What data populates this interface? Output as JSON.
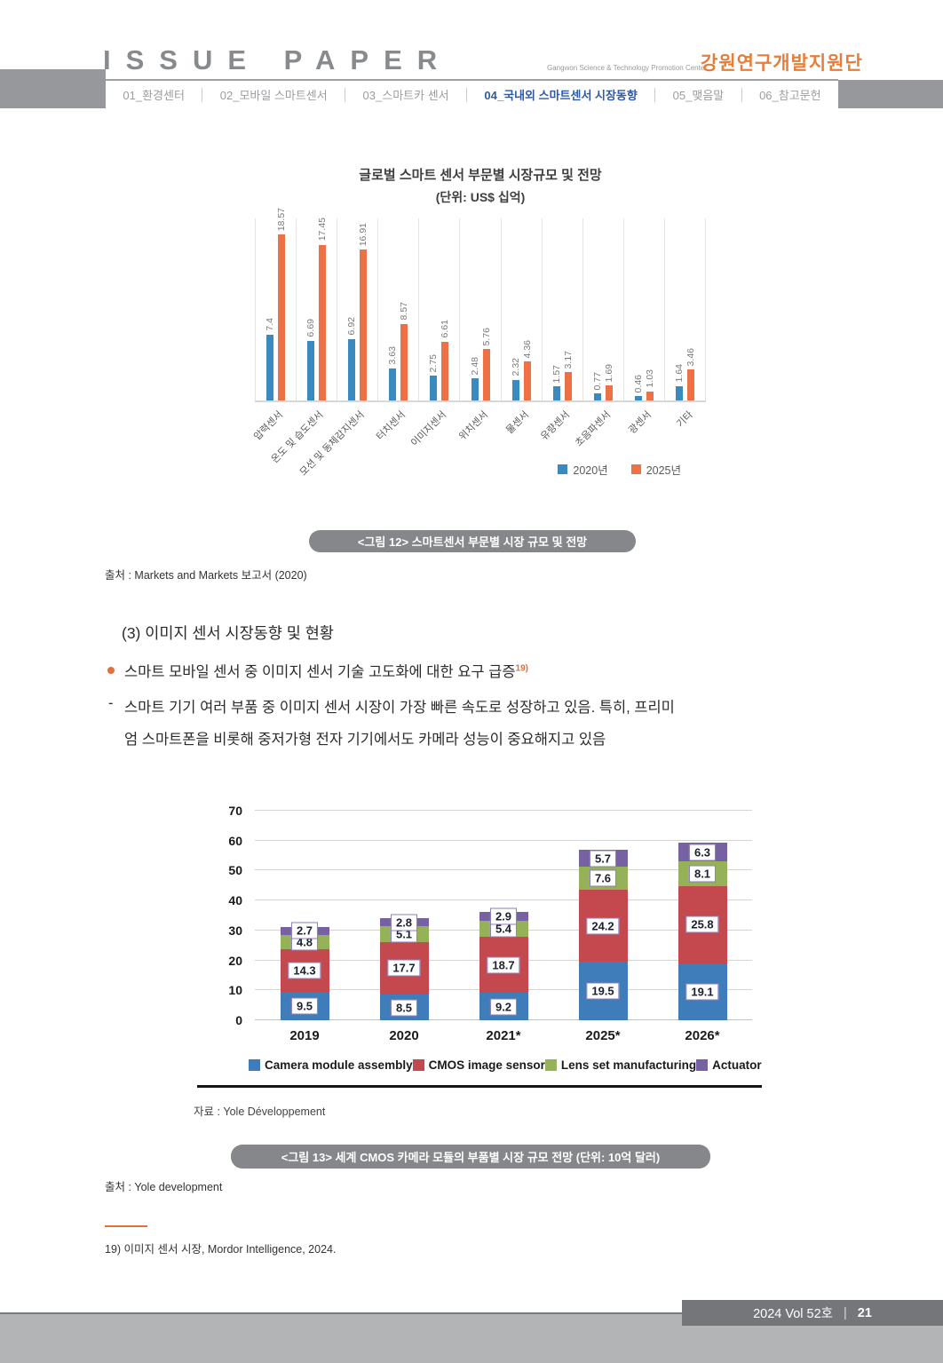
{
  "header": {
    "logo_title": "ISSUE PAPER",
    "center_en": "Gangwon Science & Technology Promotion Center",
    "brand_kr": "강원연구개발지원단",
    "nav": [
      {
        "label": "01_환경센터",
        "active": false
      },
      {
        "label": "02_모바일 스마트센서",
        "active": false
      },
      {
        "label": "03_스마트카 센서",
        "active": false
      },
      {
        "label": "04_국내외 스마트센서 시장동향",
        "active": true
      },
      {
        "label": "05_맺음말",
        "active": false
      },
      {
        "label": "06_참고문헌",
        "active": false
      }
    ]
  },
  "colors": {
    "accent_orange": "#e87d3a",
    "bullet_orange": "#e0703c",
    "nav_active_blue": "#2d5aa8",
    "caption_pill_gray": "#85878a",
    "header_block_gray": "#96989b",
    "footer_band_gray": "#b3b4b6",
    "footer_box_gray": "#747679"
  },
  "figure12": {
    "caption": "<그림 12> 스마트센서 부문별 시장 규모 및 전망",
    "source": "출처 : Markets and Markets 보고서 (2020)"
  },
  "body": {
    "section_heading": "(3) 이미지 센서 시장동향 및 현황",
    "bullet_text": "스마트 모바일 센서 중 이미지 센서 기술 고도화에 대한 요구 급증",
    "bullet_sup": "19)",
    "dash_marker": "-",
    "dash_line1": "스마트 기기 여러 부품 중 이미지 센서 시장이 가장 빠른 속도로 성장하고 있음. 특히, 프리미",
    "dash_line2": "엄 스마트폰을 비롯해 중저가형 전자 기기에서도 카메라 성능이 중요해지고 있음"
  },
  "figure13": {
    "chart_source_note": "자료 : Yole Développement",
    "caption": "<그림 13> 세계 CMOS 카메라 모듈의 부품별 시장 규모 전망 (단위: 10억 달러)",
    "source": "출처 : Yole development"
  },
  "footnote": {
    "text": "19) 이미지 센서 시장, Mordor Intelligence, 2024."
  },
  "footer": {
    "volume": "2024 Vol 52호",
    "separator": "|",
    "page": "21"
  },
  "chart_data": [
    {
      "id": "global-smart-sensor-market",
      "type": "bar",
      "title": "글로벌 스마트 센서 부문별 시장규모 및 전망",
      "subtitle": "(단위: US$ 십억)",
      "categories": [
        "압력센서",
        "온도 및 습도센서",
        "모션 및 동체감지센서",
        "터치센서",
        "이미지센서",
        "위치센서",
        "물센서",
        "유량센서",
        "초음파센서",
        "광센서",
        "기타"
      ],
      "series": [
        {
          "name": "2020년",
          "color": "#3a8abf",
          "values": [
            7.4,
            6.69,
            6.92,
            3.63,
            2.75,
            2.48,
            2.32,
            1.57,
            0.77,
            0.46,
            1.64
          ]
        },
        {
          "name": "2025년",
          "color": "#ed7144",
          "values": [
            18.57,
            17.45,
            16.91,
            8.57,
            6.61,
            5.76,
            4.36,
            3.17,
            1.69,
            1.03,
            3.46
          ]
        }
      ],
      "ylim": [
        0,
        20
      ],
      "grid": "vertical-category-separators",
      "legend_position": "bottom-right",
      "value_labels": "rotated-above-bars"
    },
    {
      "id": "cmos-camera-module-market",
      "type": "bar-stacked",
      "categories": [
        "2019",
        "2020",
        "2021*",
        "2025*",
        "2026*"
      ],
      "series": [
        {
          "name": "Camera module assembly",
          "color": "#3f7cba",
          "values": [
            9.5,
            8.5,
            9.2,
            19.5,
            19.1
          ]
        },
        {
          "name": "CMOS image sensor",
          "color": "#c4494f",
          "values": [
            14.3,
            17.7,
            18.7,
            24.2,
            25.8
          ]
        },
        {
          "name": "Lens set manufacturing",
          "color": "#95b258",
          "values": [
            4.8,
            5.1,
            5.4,
            7.6,
            8.1
          ]
        },
        {
          "name": "Actuator",
          "color": "#7661a2",
          "values": [
            2.7,
            2.8,
            2.9,
            5.7,
            6.3
          ]
        }
      ],
      "yticks": [
        0,
        10,
        20,
        30,
        40,
        50,
        60,
        70
      ],
      "ylim": [
        0,
        70
      ],
      "grid": "horizontal",
      "legend_position": "bottom",
      "value_labels": "boxed-on-segments"
    }
  ]
}
